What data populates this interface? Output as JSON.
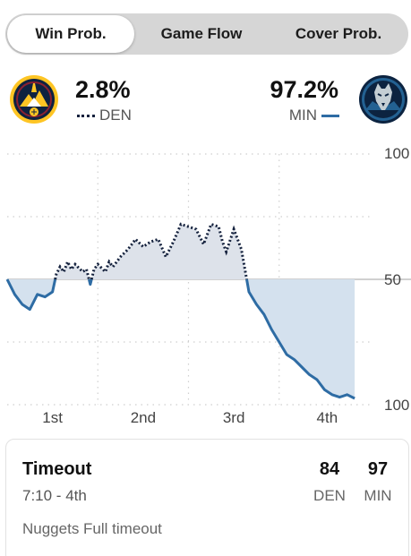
{
  "tabs": [
    {
      "label": "Win Prob.",
      "active": true
    },
    {
      "label": "Game Flow",
      "active": false
    },
    {
      "label": "Cover Prob.",
      "active": false
    }
  ],
  "teams": {
    "den": {
      "pct": "2.8%",
      "abbr": "DEN",
      "color": "#14213d",
      "logo": "nuggets-logo"
    },
    "min": {
      "pct": "97.2%",
      "abbr": "MIN",
      "color": "#2e6ca4",
      "logo": "timberwolves-logo"
    }
  },
  "chart_data": {
    "type": "area",
    "y_tick_labels": [
      "100",
      "50",
      "100"
    ],
    "x_tick_labels": [
      "1st",
      "2nd",
      "3rd",
      "4th"
    ],
    "ylim": [
      -50,
      50
    ],
    "xlim": [
      0,
      48
    ],
    "baseline": 0,
    "grid": true,
    "series": [
      {
        "team": "DEN",
        "style": "dotted",
        "points": [
          [
            0,
            0
          ],
          [
            1,
            -6
          ],
          [
            2,
            -10
          ],
          [
            3,
            -12
          ],
          [
            4,
            -6
          ],
          [
            5,
            -7
          ],
          [
            6,
            -5
          ],
          [
            6.5,
            2
          ],
          [
            7,
            5
          ],
          [
            7.5,
            3
          ],
          [
            8,
            7
          ],
          [
            8.5,
            4
          ],
          [
            9,
            6
          ],
          [
            10,
            3
          ],
          [
            10.5,
            4
          ],
          [
            11,
            -2
          ],
          [
            11.5,
            4
          ],
          [
            12,
            6
          ],
          [
            13,
            3
          ],
          [
            13.5,
            7
          ],
          [
            14,
            5
          ],
          [
            15,
            9
          ],
          [
            16,
            12
          ],
          [
            17,
            16
          ],
          [
            18,
            13
          ],
          [
            19,
            15
          ],
          [
            20,
            16
          ],
          [
            21,
            9
          ],
          [
            22,
            15
          ],
          [
            23,
            22
          ],
          [
            24,
            21
          ],
          [
            25,
            20
          ],
          [
            26,
            14
          ],
          [
            27,
            22
          ],
          [
            28,
            21
          ],
          [
            28.5,
            15
          ],
          [
            29,
            11
          ],
          [
            30,
            20
          ],
          [
            31,
            12
          ],
          [
            32,
            -5
          ],
          [
            33,
            -10
          ],
          [
            34,
            -14
          ],
          [
            35,
            -20
          ],
          [
            36,
            -25
          ],
          [
            37,
            -30
          ],
          [
            38,
            -32
          ],
          [
            39,
            -35
          ],
          [
            40,
            -38
          ],
          [
            41,
            -40
          ],
          [
            42,
            -44
          ],
          [
            43,
            -46
          ],
          [
            44,
            -47
          ],
          [
            45,
            -46
          ],
          [
            46,
            -47.5
          ]
        ]
      }
    ]
  },
  "play": {
    "title": "Timeout",
    "time": "7:10 - 4th",
    "description": "Nuggets Full timeout",
    "den_score": "84",
    "min_score": "97",
    "den_label": "DEN",
    "min_label": "MIN"
  }
}
